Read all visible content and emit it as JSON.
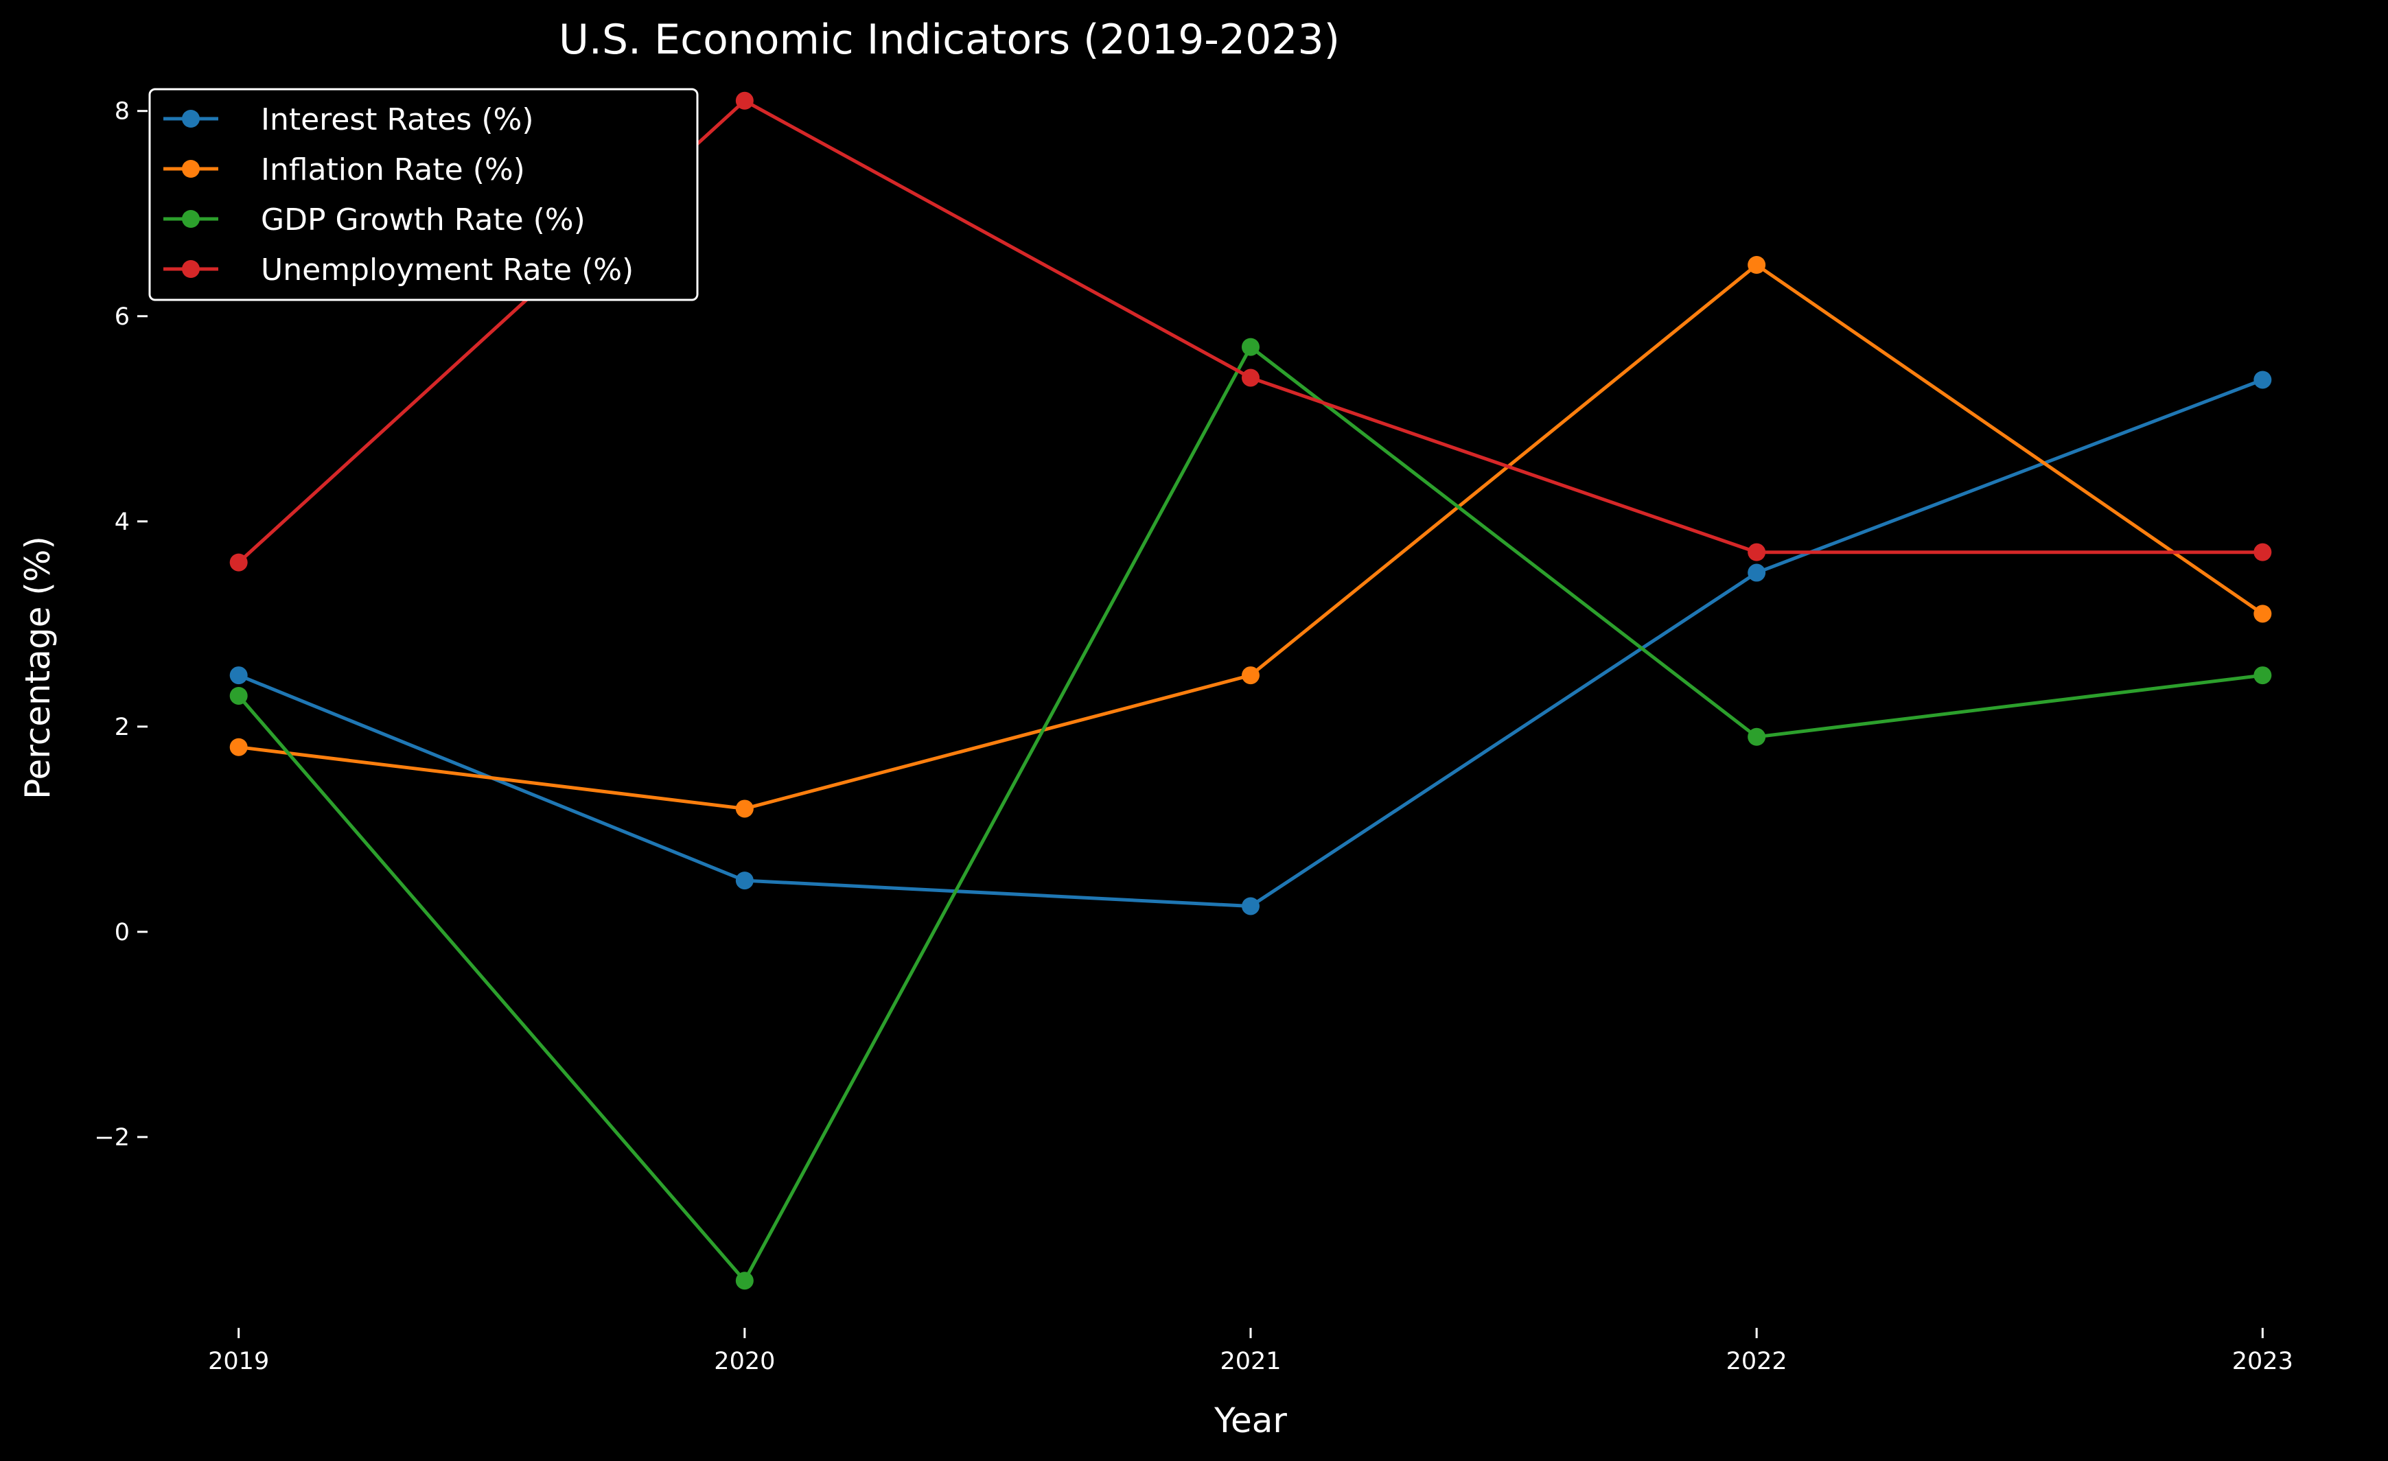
{
  "chart_data": {
    "type": "line",
    "title": "U.S. Economic Indicators (2019-2023)",
    "xlabel": "Year",
    "ylabel": "Percentage (%)",
    "x": [
      2019,
      2020,
      2021,
      2022,
      2023
    ],
    "x_tick_labels": [
      "2019",
      "2020",
      "2021",
      "2022",
      "2023"
    ],
    "xlim": [
      2018.82,
      2023.18
    ],
    "ylim": [
      -3.86,
      8.56
    ],
    "y_ticks": [
      -2,
      0,
      2,
      4,
      6,
      8
    ],
    "y_tick_labels": [
      "−2",
      "0",
      "2",
      "4",
      "6",
      "8"
    ],
    "grid": false,
    "legend_position": "top-left",
    "background": "#000000",
    "series": [
      {
        "name": "Interest Rates (%)",
        "color": "#1f77b4",
        "values": [
          2.5,
          0.5,
          0.25,
          3.5,
          5.38
        ]
      },
      {
        "name": "Inflation Rate (%)",
        "color": "#ff7f0e",
        "values": [
          1.8,
          1.2,
          2.5,
          6.5,
          3.1
        ]
      },
      {
        "name": "GDP Growth Rate (%)",
        "color": "#2ca02c",
        "values": [
          2.3,
          -3.4,
          5.7,
          1.9,
          2.5
        ]
      },
      {
        "name": "Unemployment Rate (%)",
        "color": "#d62728",
        "values": [
          3.6,
          8.1,
          5.4,
          3.7,
          3.7
        ]
      }
    ]
  }
}
